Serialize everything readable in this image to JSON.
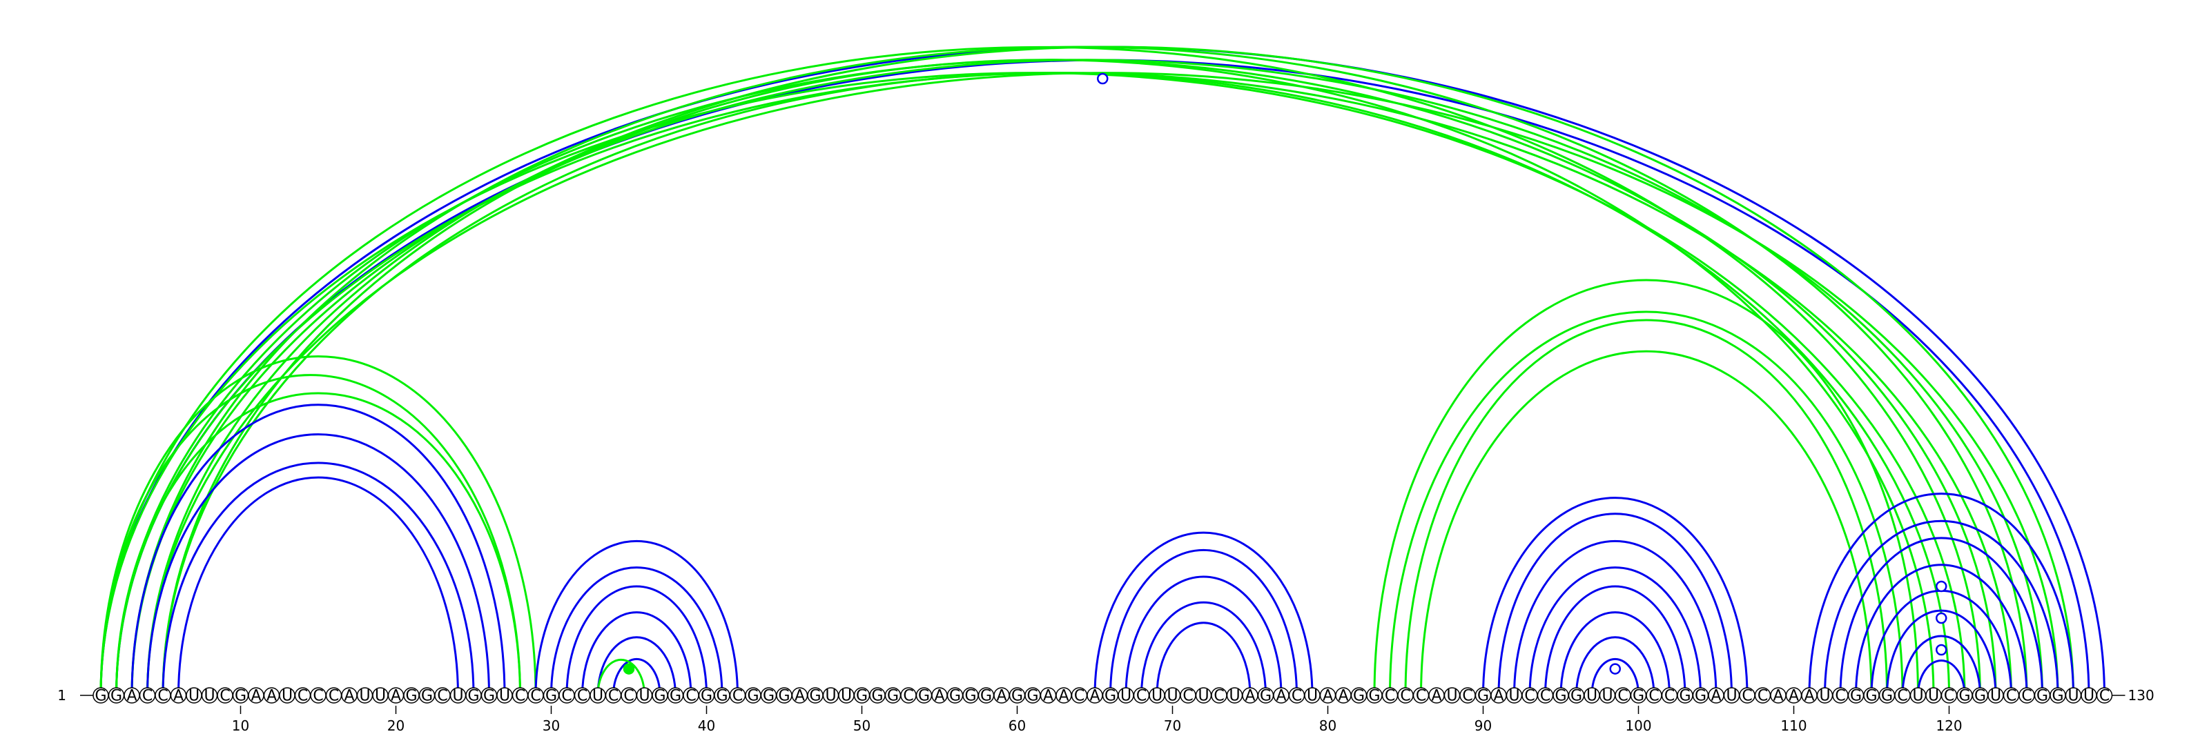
{
  "colors": {
    "blue": "#0000ee",
    "green": "#00ee00",
    "backbone": "#000000"
  },
  "sequence": "GGACCAUUCGAAUCCCAUUAGGCUGGUCCGCCUCCUGGCGGCGGGAGUUGGGCGAGGGAGGAACAGUCUUCUCUAGACUAAGGCCCAUCGAUCCGGUUCGCCGGAUCCAAAUCGGGCUUCGGUCCGGUUC",
  "start_label": "1",
  "end_label": "130",
  "tick_positions": [
    10,
    20,
    30,
    40,
    50,
    60,
    70,
    80,
    90,
    100,
    110,
    120
  ],
  "tick_labels": [
    "10",
    "20",
    "30",
    "40",
    "50",
    "60",
    "70",
    "80",
    "90",
    "100",
    "110",
    "120"
  ],
  "arcs": [
    {
      "i": 1,
      "j": 130,
      "color": "blue"
    },
    {
      "i": 2,
      "j": 129,
      "color": "blue"
    },
    {
      "i": 1,
      "j": 121,
      "color": "green"
    },
    {
      "i": 1,
      "j": 122,
      "color": "green"
    },
    {
      "i": 2,
      "j": 123,
      "color": "green"
    },
    {
      "i": 2,
      "j": 124,
      "color": "green"
    },
    {
      "i": 3,
      "j": 125,
      "color": "green"
    },
    {
      "i": 3,
      "j": 126,
      "color": "green"
    },
    {
      "i": 4,
      "j": 127,
      "color": "green"
    },
    {
      "i": 4,
      "j": 128,
      "color": "green"
    },
    {
      "i": 5,
      "j": 119,
      "color": "green"
    },
    {
      "i": 5,
      "j": 120,
      "color": "green"
    },
    {
      "i": 1,
      "j": 29,
      "color": "green"
    },
    {
      "i": 1,
      "j": 28,
      "color": "green"
    },
    {
      "i": 2,
      "j": 28,
      "color": "green"
    },
    {
      "i": 3,
      "j": 27,
      "color": "blue"
    },
    {
      "i": 4,
      "j": 26,
      "color": "blue"
    },
    {
      "i": 5,
      "j": 25,
      "color": "blue"
    },
    {
      "i": 6,
      "j": 24,
      "color": "blue"
    },
    {
      "i": 29,
      "j": 42,
      "color": "blue"
    },
    {
      "i": 30,
      "j": 41,
      "color": "blue"
    },
    {
      "i": 31,
      "j": 40,
      "color": "blue"
    },
    {
      "i": 32,
      "j": 39,
      "color": "blue"
    },
    {
      "i": 33,
      "j": 38,
      "color": "blue"
    },
    {
      "i": 34,
      "j": 37,
      "color": "blue"
    },
    {
      "i": 33,
      "j": 36,
      "color": "green"
    },
    {
      "i": 65,
      "j": 79,
      "color": "blue"
    },
    {
      "i": 66,
      "j": 78,
      "color": "blue"
    },
    {
      "i": 67,
      "j": 77,
      "color": "blue"
    },
    {
      "i": 68,
      "j": 76,
      "color": "blue"
    },
    {
      "i": 69,
      "j": 75,
      "color": "blue"
    },
    {
      "i": 83,
      "j": 118,
      "color": "green"
    },
    {
      "i": 84,
      "j": 117,
      "color": "green"
    },
    {
      "i": 85,
      "j": 116,
      "color": "green"
    },
    {
      "i": 86,
      "j": 115,
      "color": "green"
    },
    {
      "i": 90,
      "j": 107,
      "color": "blue"
    },
    {
      "i": 91,
      "j": 106,
      "color": "blue"
    },
    {
      "i": 92,
      "j": 105,
      "color": "blue"
    },
    {
      "i": 93,
      "j": 104,
      "color": "blue"
    },
    {
      "i": 94,
      "j": 103,
      "color": "blue"
    },
    {
      "i": 95,
      "j": 102,
      "color": "blue"
    },
    {
      "i": 96,
      "j": 101,
      "color": "blue"
    },
    {
      "i": 97,
      "j": 100,
      "color": "blue"
    },
    {
      "i": 111,
      "j": 128,
      "color": "blue"
    },
    {
      "i": 112,
      "j": 127,
      "color": "blue"
    },
    {
      "i": 113,
      "j": 126,
      "color": "blue"
    },
    {
      "i": 114,
      "j": 125,
      "color": "blue"
    },
    {
      "i": 115,
      "j": 124,
      "color": "blue"
    },
    {
      "i": 116,
      "j": 123,
      "color": "blue"
    },
    {
      "i": 117,
      "j": 122,
      "color": "blue"
    },
    {
      "i": 118,
      "j": 121,
      "color": "blue"
    }
  ],
  "markers": [
    {
      "pos": 65.5,
      "level": 0.95,
      "color": "blue",
      "style": "open"
    },
    {
      "pos": 35,
      "level": 0.02,
      "color": "green",
      "style": "filled"
    },
    {
      "pos": 98.5,
      "level": 0.02,
      "color": "blue",
      "style": "open"
    },
    {
      "pos": 119.5,
      "level": 0.15,
      "color": "blue",
      "style": "open"
    },
    {
      "pos": 119.5,
      "level": 0.1,
      "color": "blue",
      "style": "open"
    },
    {
      "pos": 119.5,
      "level": 0.05,
      "color": "blue",
      "style": "open"
    }
  ]
}
